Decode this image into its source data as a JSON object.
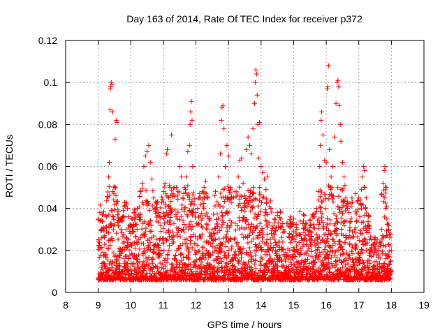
{
  "chart_data": {
    "type": "scatter",
    "title": "Day 163 of 2014, Rate Of TEC Index for receiver p372",
    "xlabel": "GPS time / hours",
    "ylabel": "ROTI / TECUs",
    "xlim": [
      8,
      19
    ],
    "ylim": [
      0,
      0.12
    ],
    "xticks": [
      "8",
      "9",
      "10",
      "11",
      "12",
      "13",
      "14",
      "15",
      "16",
      "17",
      "18",
      "19"
    ],
    "yticks": [
      "0",
      "0.02",
      "0.04",
      "0.06",
      "0.08",
      "0.1",
      "0.12"
    ],
    "grid": true,
    "marker": "+",
    "color": "#ff0000",
    "series": [
      {
        "name": "ROTI",
        "points": [
          [
            9.0,
            0.035
          ],
          [
            9.05,
            0.038
          ],
          [
            9.1,
            0.03
          ],
          [
            9.15,
            0.037
          ],
          [
            9.2,
            0.027
          ],
          [
            9.25,
            0.036
          ],
          [
            9.3,
            0.045
          ],
          [
            9.32,
            0.055
          ],
          [
            9.34,
            0.062
          ],
          [
            9.36,
            0.087
          ],
          [
            9.37,
            0.097
          ],
          [
            9.38,
            0.098
          ],
          [
            9.4,
            0.1
          ],
          [
            9.42,
            0.099
          ],
          [
            9.44,
            0.086
          ],
          [
            9.45,
            0.048
          ],
          [
            9.48,
            0.047
          ],
          [
            9.5,
            0.042
          ],
          [
            9.52,
            0.073
          ],
          [
            9.55,
            0.082
          ],
          [
            9.58,
            0.081
          ],
          [
            9.6,
            0.037
          ],
          [
            9.65,
            0.035
          ],
          [
            9.7,
            0.03
          ],
          [
            9.75,
            0.036
          ],
          [
            9.8,
            0.041
          ],
          [
            9.85,
            0.043
          ],
          [
            9.9,
            0.04
          ],
          [
            9.95,
            0.032
          ],
          [
            10.0,
            0.028
          ],
          [
            10.05,
            0.035
          ],
          [
            10.1,
            0.038
          ],
          [
            10.15,
            0.032
          ],
          [
            10.2,
            0.04
          ],
          [
            10.25,
            0.037
          ],
          [
            10.3,
            0.048
          ],
          [
            10.35,
            0.052
          ],
          [
            10.4,
            0.06
          ],
          [
            10.45,
            0.065
          ],
          [
            10.5,
            0.067
          ],
          [
            10.55,
            0.07
          ],
          [
            10.6,
            0.062
          ],
          [
            10.65,
            0.054
          ],
          [
            10.7,
            0.045
          ],
          [
            10.75,
            0.04
          ],
          [
            10.8,
            0.042
          ],
          [
            10.85,
            0.038
          ],
          [
            10.9,
            0.036
          ],
          [
            10.95,
            0.043
          ],
          [
            11.0,
            0.048
          ],
          [
            11.05,
            0.052
          ],
          [
            11.1,
            0.066
          ],
          [
            11.12,
            0.068
          ],
          [
            11.15,
            0.045
          ],
          [
            11.2,
            0.05
          ],
          [
            11.25,
            0.075
          ],
          [
            11.3,
            0.047
          ],
          [
            11.35,
            0.05
          ],
          [
            11.4,
            0.05
          ],
          [
            11.45,
            0.048
          ],
          [
            11.5,
            0.06
          ],
          [
            11.55,
            0.055
          ],
          [
            11.6,
            0.045
          ],
          [
            11.65,
            0.05
          ],
          [
            11.7,
            0.055
          ],
          [
            11.75,
            0.067
          ],
          [
            11.8,
            0.07
          ],
          [
            11.82,
            0.08
          ],
          [
            11.84,
            0.086
          ],
          [
            11.86,
            0.091
          ],
          [
            11.88,
            0.082
          ],
          [
            11.9,
            0.06
          ],
          [
            11.95,
            0.042
          ],
          [
            12.0,
            0.038
          ],
          [
            12.05,
            0.04
          ],
          [
            12.1,
            0.045
          ],
          [
            12.15,
            0.042
          ],
          [
            12.2,
            0.048
          ],
          [
            12.25,
            0.05
          ],
          [
            12.3,
            0.053
          ],
          [
            12.35,
            0.045
          ],
          [
            12.4,
            0.035
          ],
          [
            12.5,
            0.03
          ],
          [
            12.6,
            0.048
          ],
          [
            12.7,
            0.055
          ],
          [
            12.75,
            0.066
          ],
          [
            12.78,
            0.082
          ],
          [
            12.8,
            0.088
          ],
          [
            12.83,
            0.089
          ],
          [
            12.86,
            0.078
          ],
          [
            12.9,
            0.06
          ],
          [
            12.95,
            0.07
          ],
          [
            13.0,
            0.065
          ],
          [
            13.05,
            0.05
          ],
          [
            13.1,
            0.045
          ],
          [
            13.2,
            0.048
          ],
          [
            13.3,
            0.055
          ],
          [
            13.35,
            0.063
          ],
          [
            13.4,
            0.064
          ],
          [
            13.45,
            0.052
          ],
          [
            13.5,
            0.046
          ],
          [
            13.55,
            0.068
          ],
          [
            13.6,
            0.074
          ],
          [
            13.65,
            0.07
          ],
          [
            13.7,
            0.066
          ],
          [
            13.75,
            0.078
          ],
          [
            13.8,
            0.09
          ],
          [
            13.82,
            0.1
          ],
          [
            13.84,
            0.106
          ],
          [
            13.86,
            0.104
          ],
          [
            13.88,
            0.094
          ],
          [
            13.9,
            0.08
          ],
          [
            13.92,
            0.064
          ],
          [
            13.95,
            0.081
          ],
          [
            14.0,
            0.06
          ],
          [
            14.05,
            0.057
          ],
          [
            14.1,
            0.054
          ],
          [
            14.15,
            0.049
          ],
          [
            14.2,
            0.055
          ],
          [
            14.3,
            0.04
          ],
          [
            14.4,
            0.035
          ],
          [
            14.5,
            0.038
          ],
          [
            14.6,
            0.035
          ],
          [
            14.7,
            0.03
          ],
          [
            14.8,
            0.033
          ],
          [
            14.9,
            0.036
          ],
          [
            15.0,
            0.035
          ],
          [
            15.1,
            0.03
          ],
          [
            15.2,
            0.034
          ],
          [
            15.3,
            0.037
          ],
          [
            15.4,
            0.033
          ],
          [
            15.5,
            0.031
          ],
          [
            15.6,
            0.036
          ],
          [
            15.7,
            0.04
          ],
          [
            15.75,
            0.048
          ],
          [
            15.8,
            0.06
          ],
          [
            15.82,
            0.07
          ],
          [
            15.84,
            0.082
          ],
          [
            15.86,
            0.086
          ],
          [
            15.9,
            0.075
          ],
          [
            15.95,
            0.063
          ],
          [
            16.0,
            0.062
          ],
          [
            16.03,
            0.097
          ],
          [
            16.05,
            0.098
          ],
          [
            16.07,
            0.108
          ],
          [
            16.1,
            0.068
          ],
          [
            16.15,
            0.055
          ],
          [
            16.2,
            0.06
          ],
          [
            16.25,
            0.074
          ],
          [
            16.3,
            0.09
          ],
          [
            16.33,
            0.1
          ],
          [
            16.36,
            0.101
          ],
          [
            16.38,
            0.098
          ],
          [
            16.4,
            0.089
          ],
          [
            16.43,
            0.08
          ],
          [
            16.45,
            0.072
          ],
          [
            16.5,
            0.062
          ],
          [
            16.55,
            0.055
          ],
          [
            16.6,
            0.045
          ],
          [
            16.65,
            0.04
          ],
          [
            16.7,
            0.038
          ],
          [
            16.8,
            0.043
          ],
          [
            16.9,
            0.047
          ],
          [
            17.0,
            0.045
          ],
          [
            17.05,
            0.044
          ],
          [
            17.1,
            0.055
          ],
          [
            17.15,
            0.06
          ],
          [
            17.18,
            0.058
          ],
          [
            17.2,
            0.04
          ],
          [
            17.3,
            0.032
          ],
          [
            17.4,
            0.025
          ],
          [
            17.5,
            0.022
          ],
          [
            17.6,
            0.02
          ],
          [
            17.7,
            0.03
          ],
          [
            17.75,
            0.052
          ],
          [
            17.78,
            0.058
          ],
          [
            17.8,
            0.06
          ],
          [
            17.83,
            0.04
          ],
          [
            17.86,
            0.035
          ],
          [
            17.9,
            0.033
          ],
          [
            17.95,
            0.026
          ],
          [
            18.0,
            0.02
          ]
        ]
      }
    ]
  }
}
